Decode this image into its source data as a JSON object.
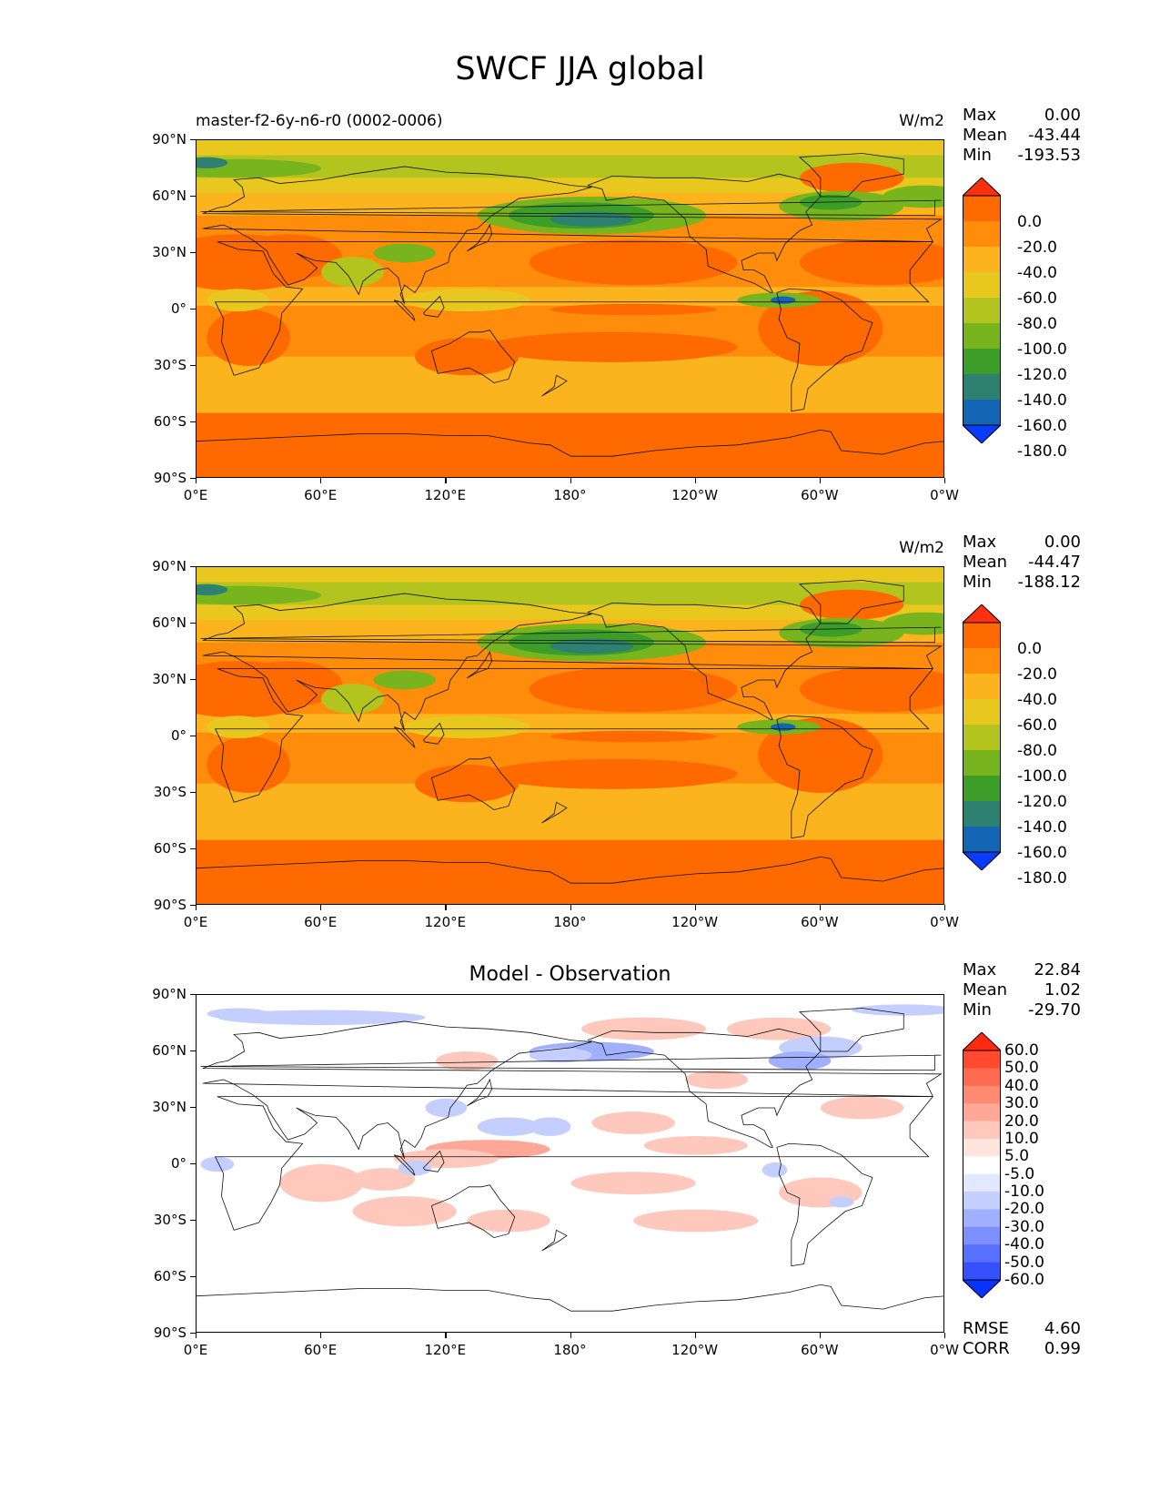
{
  "title": "SWCF JJA global",
  "axes": {
    "lat_ticks": [
      "90°N",
      "60°N",
      "30°N",
      "0°",
      "30°S",
      "60°S",
      "90°S"
    ],
    "lon_ticks": [
      "0°E",
      "60°E",
      "120°E",
      "180°",
      "120°W",
      "60°W",
      "0°W"
    ]
  },
  "panels": [
    {
      "run_label": "master-f2-6y-n6-r0 (0002-0006)",
      "units": "W/m2",
      "panel_title": "",
      "stats": [
        {
          "k": "Max",
          "v": "0.00"
        },
        {
          "k": "Mean",
          "v": "-43.44"
        },
        {
          "k": "Min",
          "v": "-193.53"
        }
      ],
      "colorbar": {
        "labels": [
          "0.0",
          "-20.0",
          "-40.0",
          "-60.0",
          "-80.0",
          "-100.0",
          "-120.0",
          "-140.0",
          "-160.0",
          "-180.0"
        ],
        "colors": [
          "#ff3010",
          "#ff6a00",
          "#ff8c0a",
          "#fbb41e",
          "#e8c81e",
          "#b4c41e",
          "#78b41e",
          "#3c9e28",
          "#2e8070",
          "#1466b4",
          "#0a3cff"
        ]
      }
    },
    {
      "run_label": "",
      "units": "W/m2",
      "panel_title": "",
      "stats": [
        {
          "k": "Max",
          "v": "0.00"
        },
        {
          "k": "Mean",
          "v": "-44.47"
        },
        {
          "k": "Min",
          "v": "-188.12"
        }
      ],
      "colorbar": {
        "labels": [
          "0.0",
          "-20.0",
          "-40.0",
          "-60.0",
          "-80.0",
          "-100.0",
          "-120.0",
          "-140.0",
          "-160.0",
          "-180.0"
        ],
        "colors": [
          "#ff3010",
          "#ff6a00",
          "#ff8c0a",
          "#fbb41e",
          "#e8c81e",
          "#b4c41e",
          "#78b41e",
          "#3c9e28",
          "#2e8070",
          "#1466b4",
          "#0a3cff"
        ]
      }
    },
    {
      "run_label": "",
      "units": "",
      "panel_title": "Model - Observation",
      "stats": [
        {
          "k": "Max",
          "v": "22.84"
        },
        {
          "k": "Mean",
          "v": "1.02"
        },
        {
          "k": "Min",
          "v": "-29.70"
        }
      ],
      "extra_stats": [
        {
          "k": "RMSE",
          "v": "4.60"
        },
        {
          "k": "CORR",
          "v": "0.99"
        }
      ],
      "colorbar": {
        "labels": [
          "60.0",
          "50.0",
          "40.0",
          "30.0",
          "20.0",
          "10.0",
          "5.0",
          "-5.0",
          "-10.0",
          "-20.0",
          "-30.0",
          "-40.0",
          "-50.0",
          "-60.0"
        ],
        "colors": [
          "#ff2a10",
          "#ff4a30",
          "#ff6a50",
          "#ff8a72",
          "#ffa898",
          "#ffc8bc",
          "#ffe4de",
          "#ffffff",
          "#e2e8ff",
          "#c4ceff",
          "#a0b0ff",
          "#7c90ff",
          "#5870ff",
          "#3450ff",
          "#0a32ff"
        ]
      }
    }
  ],
  "chart_data": [
    {
      "type": "heatmap",
      "title": "SWCF JJA global",
      "subtitle": "master-f2-6y-n6-r0 (0002-0006)",
      "units": "W/m2",
      "xlim": [
        0,
        360
      ],
      "ylim": [
        -90,
        90
      ],
      "stats": {
        "Max": 0.0,
        "Mean": -43.44,
        "Min": -193.53
      },
      "levels": [
        -180,
        -160,
        -140,
        -120,
        -100,
        -80,
        -60,
        -40,
        -20,
        0
      ],
      "colorbar_labels": [
        "0.0",
        "-20.0",
        "-40.0",
        "-60.0",
        "-80.0",
        "-100.0",
        "-120.0",
        "-140.0",
        "-160.0",
        "-180.0"
      ]
    },
    {
      "type": "heatmap",
      "units": "W/m2",
      "xlim": [
        0,
        360
      ],
      "ylim": [
        -90,
        90
      ],
      "stats": {
        "Max": 0.0,
        "Mean": -44.47,
        "Min": -188.12
      },
      "levels": [
        -180,
        -160,
        -140,
        -120,
        -100,
        -80,
        -60,
        -40,
        -20,
        0
      ],
      "colorbar_labels": [
        "0.0",
        "-20.0",
        "-40.0",
        "-60.0",
        "-80.0",
        "-100.0",
        "-120.0",
        "-140.0",
        "-160.0",
        "-180.0"
      ]
    },
    {
      "type": "heatmap",
      "title": "Model - Observation",
      "xlim": [
        0,
        360
      ],
      "ylim": [
        -90,
        90
      ],
      "stats": {
        "Max": 22.84,
        "Mean": 1.02,
        "Min": -29.7,
        "RMSE": 4.6,
        "CORR": 0.99
      },
      "levels": [
        -60,
        -50,
        -40,
        -30,
        -20,
        -10,
        -5,
        5,
        10,
        20,
        30,
        40,
        50,
        60
      ],
      "colorbar_labels": [
        "60.0",
        "50.0",
        "40.0",
        "30.0",
        "20.0",
        "10.0",
        "5.0",
        "-5.0",
        "-10.0",
        "-20.0",
        "-30.0",
        "-40.0",
        "-50.0",
        "-60.0"
      ]
    }
  ]
}
